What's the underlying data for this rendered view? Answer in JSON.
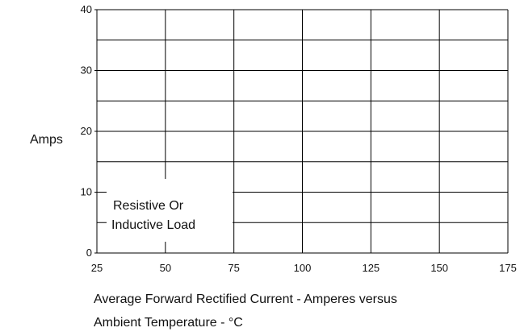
{
  "chart_data": {
    "type": "line",
    "title": "",
    "xlabel": "",
    "ylabel": "Amps",
    "xlim": [
      25,
      175
    ],
    "ylim": [
      0,
      40
    ],
    "x_ticks": [
      25,
      50,
      75,
      100,
      125,
      150,
      175
    ],
    "y_ticks": [
      0,
      10,
      20,
      30,
      40
    ],
    "grid": true,
    "series": [],
    "annotation": [
      "Resistive Or",
      "Inductive Load"
    ]
  },
  "caption": {
    "line1": "Average Forward Rectified Current  -  Amperes versus",
    "line2": "Ambient Temperature  - °C"
  }
}
